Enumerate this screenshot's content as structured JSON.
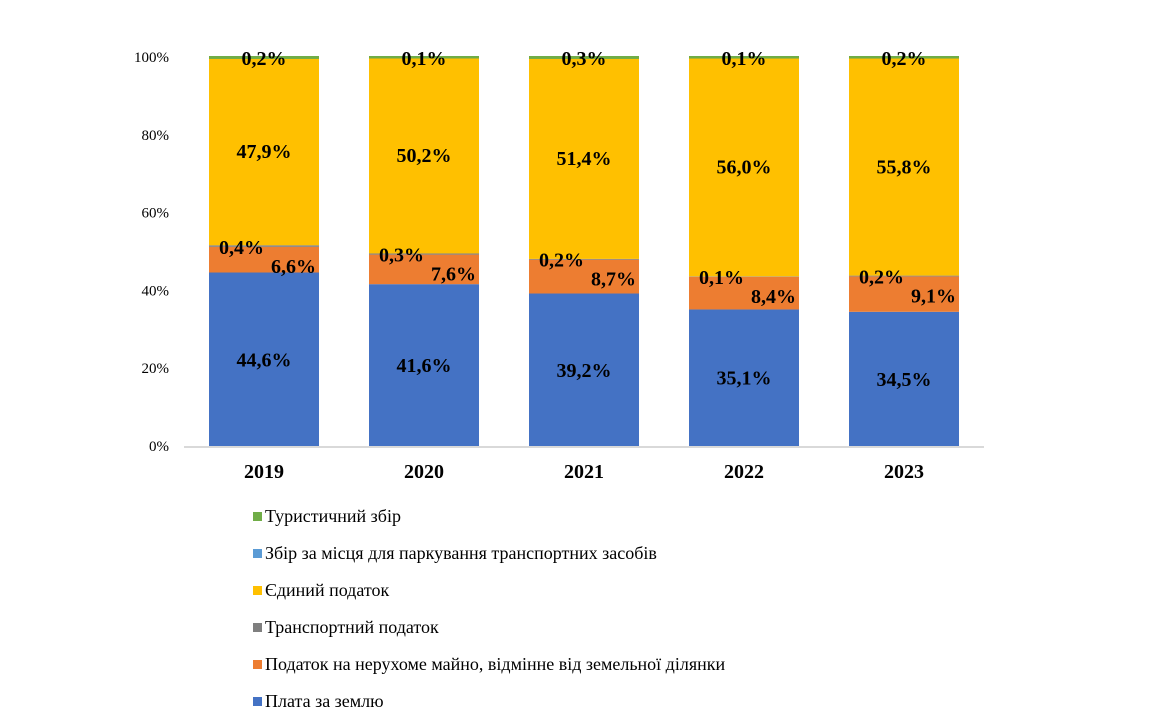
{
  "chart_data": {
    "type": "bar",
    "stacked": true,
    "percent_stacked": true,
    "title": "",
    "xlabel": "",
    "ylabel": "",
    "ylim": [
      0,
      100
    ],
    "y_ticks": [
      "0%",
      "20%",
      "40%",
      "60%",
      "80%",
      "100%"
    ],
    "y_tick_values": [
      0,
      20,
      40,
      60,
      80,
      100
    ],
    "grid": false,
    "legend_position": "bottom",
    "categories": [
      "2019",
      "2020",
      "2021",
      "2022",
      "2023"
    ],
    "series": [
      {
        "name": "Плата за землю",
        "color": "#4472C4",
        "values": [
          44.6,
          41.6,
          39.2,
          35.1,
          34.5
        ],
        "labels": [
          "44,6%",
          "41,6%",
          "39,2%",
          "35,1%",
          "34,5%"
        ]
      },
      {
        "name": "Податок на нерухоме майно, відмінне від земельної ділянки",
        "color": "#ED7D31",
        "values": [
          6.6,
          7.6,
          8.7,
          8.4,
          9.1
        ],
        "labels": [
          "6,6%",
          "7,6%",
          "8,7%",
          "8,4%",
          "9,1%"
        ]
      },
      {
        "name": "Транспортний податок",
        "color": "#7F7F7F",
        "values": [
          0.4,
          0.3,
          0.2,
          0.1,
          0.2
        ],
        "labels": [
          "0,4%",
          "0,3%",
          "0,2%",
          "0,1%",
          "0,2%"
        ]
      },
      {
        "name": "Єдиний податок",
        "color": "#FFC000",
        "values": [
          47.9,
          50.2,
          51.4,
          56.0,
          55.8
        ],
        "labels": [
          "47,9%",
          "50,2%",
          "51,4%",
          "56,0%",
          "55,8%"
        ]
      },
      {
        "name": "Збір за місця для паркування транспортних засобів",
        "color": "#5B9BD5",
        "values": [
          0.0,
          0.0,
          0.0,
          0.0,
          0.0
        ],
        "labels": [
          "",
          "",
          "",
          "",
          ""
        ]
      },
      {
        "name": "Туристичний збір",
        "color": "#70AD47",
        "values": [
          0.2,
          0.1,
          0.3,
          0.1,
          0.2
        ],
        "labels": [
          "0,2%",
          "0,1%",
          "0,3%",
          "0,1%",
          "0,2%"
        ]
      }
    ],
    "legend_order": [
      5,
      4,
      3,
      2,
      1,
      0
    ]
  }
}
